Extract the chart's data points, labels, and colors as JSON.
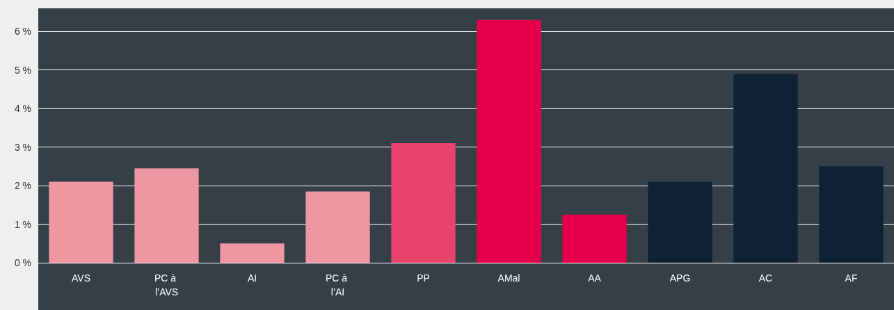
{
  "chart_data": {
    "type": "bar",
    "categories": [
      "AVS",
      "PC à l’AVS",
      "AI",
      "PC à l’AI",
      "PP",
      "AMal",
      "AA",
      "APG",
      "AC",
      "AF"
    ],
    "values": [
      2.1,
      2.45,
      0.5,
      1.85,
      3.1,
      6.3,
      1.25,
      2.1,
      4.9,
      2.5
    ],
    "colors": [
      "#ef96a3",
      "#ef96a3",
      "#ef96a3",
      "#ef96a3",
      "#e8436a",
      "#e6004c",
      "#e6004c",
      "#0e2233",
      "#0e2233",
      "#0e2233"
    ],
    "ylim": [
      0,
      6.6
    ],
    "yticks": [
      {
        "value": 0,
        "label": "0 %"
      },
      {
        "value": 1,
        "label": "1 %"
      },
      {
        "value": 2,
        "label": "2 %"
      },
      {
        "value": 3,
        "label": "3 %"
      },
      {
        "value": 4,
        "label": "4 %"
      },
      {
        "value": 5,
        "label": "5 %"
      },
      {
        "value": 6,
        "label": "6 %"
      }
    ],
    "grid": "y"
  }
}
